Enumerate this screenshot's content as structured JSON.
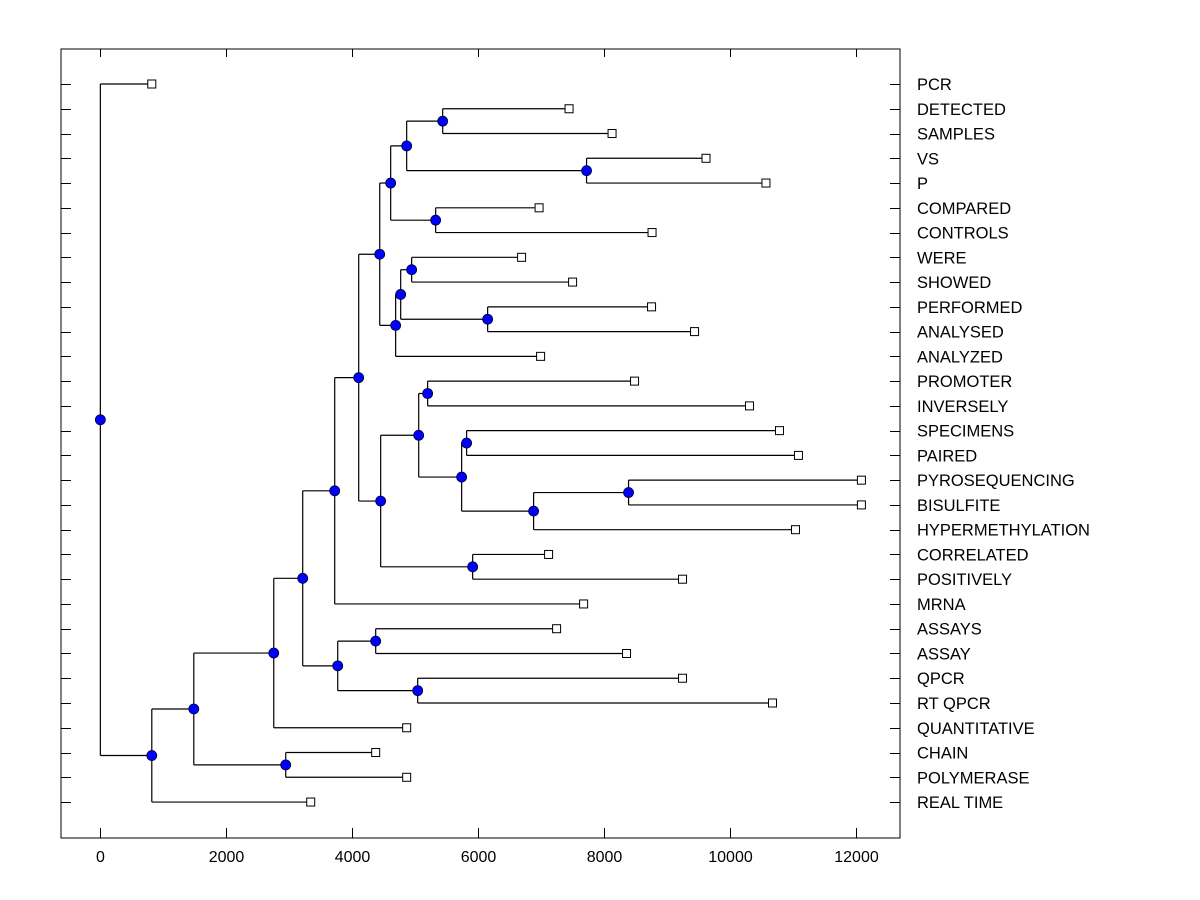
{
  "chart_data": {
    "type": "dendrogram",
    "title": "",
    "xlabel": "",
    "ylabel": "",
    "xlim": [
      -625,
      12700
    ],
    "x_ticks": [
      0,
      2000,
      4000,
      6000,
      8000,
      10000,
      12000
    ],
    "x_tick_labels": [
      "0",
      "2000",
      "4000",
      "6000",
      "8000",
      "10000",
      "12000"
    ],
    "grid": false,
    "legend": "none",
    "node_color": "#0000ff",
    "leaf_marker": "open-square",
    "leaves": [
      {
        "id": "PCR",
        "label": "PCR",
        "value": 817
      },
      {
        "id": "DETECTED",
        "label": "DETECTED",
        "value": 7444
      },
      {
        "id": "SAMPLES",
        "label": "SAMPLES",
        "value": 8127
      },
      {
        "id": "VS",
        "label": "VS",
        "value": 9619
      },
      {
        "id": "P",
        "label": "P",
        "value": 10571
      },
      {
        "id": "COMPARED",
        "label": "COMPARED",
        "value": 6968
      },
      {
        "id": "CONTROLS",
        "label": "CONTROLS",
        "value": 8762
      },
      {
        "id": "WERE",
        "label": "WERE",
        "value": 6690
      },
      {
        "id": "SHOWED",
        "label": "SHOWED",
        "value": 7500
      },
      {
        "id": "PERFORMED",
        "label": "PERFORMED",
        "value": 8754
      },
      {
        "id": "ANALYSED",
        "label": "ANALYSED",
        "value": 9437
      },
      {
        "id": "ANALYZED",
        "label": "ANALYZED",
        "value": 6992
      },
      {
        "id": "PROMOTER",
        "label": "PROMOTER",
        "value": 8484
      },
      {
        "id": "INVERSELY",
        "label": "INVERSELY",
        "value": 10310
      },
      {
        "id": "SPECIMENS",
        "label": "SPECIMENS",
        "value": 10786
      },
      {
        "id": "PAIRED",
        "label": "PAIRED",
        "value": 11087
      },
      {
        "id": "PYROSEQUENCING",
        "label": "PYROSEQUENCING",
        "value": 12087
      },
      {
        "id": "BISULFITE",
        "label": "BISULFITE",
        "value": 12087
      },
      {
        "id": "HYPERMETHYLATION",
        "label": "HYPERMETHYLATION",
        "value": 11040
      },
      {
        "id": "CORRELATED",
        "label": "CORRELATED",
        "value": 7119
      },
      {
        "id": "POSITIVELY",
        "label": "POSITIVELY",
        "value": 9246
      },
      {
        "id": "MRNA",
        "label": "MRNA",
        "value": 7675
      },
      {
        "id": "ASSAYS",
        "label": "ASSAYS",
        "value": 7246
      },
      {
        "id": "ASSAY",
        "label": "ASSAY",
        "value": 8357
      },
      {
        "id": "QPCR",
        "label": "QPCR",
        "value": 9246
      },
      {
        "id": "RT_QPCR",
        "label": "RT QPCR",
        "value": 10675
      },
      {
        "id": "QUANTITATIVE",
        "label": "QUANTITATIVE",
        "value": 4865
      },
      {
        "id": "CHAIN",
        "label": "CHAIN",
        "value": 4373
      },
      {
        "id": "POLYMERASE",
        "label": "POLYMERASE",
        "value": 4865
      },
      {
        "id": "REAL_TIME",
        "label": "REAL TIME",
        "value": 3341
      }
    ],
    "nodes": [
      {
        "id": "root",
        "value": 0,
        "children": [
          "PCR",
          "n1"
        ]
      },
      {
        "id": "n1",
        "value": 817,
        "children": [
          "n2",
          "REAL_TIME"
        ]
      },
      {
        "id": "n2",
        "value": 1484,
        "children": [
          "n3",
          "n_chain"
        ]
      },
      {
        "id": "n_chain",
        "value": 2944,
        "children": [
          "CHAIN",
          "POLYMERASE"
        ]
      },
      {
        "id": "n3",
        "value": 2754,
        "children": [
          "n4",
          "QUANTITATIVE"
        ]
      },
      {
        "id": "n4",
        "value": 3214,
        "children": [
          "n5",
          "n_assay"
        ]
      },
      {
        "id": "n_assay",
        "value": 3770,
        "children": [
          "n_as",
          "n_qpcr"
        ]
      },
      {
        "id": "n_as",
        "value": 4373,
        "children": [
          "ASSAYS",
          "ASSAY"
        ]
      },
      {
        "id": "n_qpcr",
        "value": 5040,
        "children": [
          "QPCR",
          "RT_QPCR"
        ]
      },
      {
        "id": "n5",
        "value": 3722,
        "children": [
          "n6",
          "MRNA"
        ]
      },
      {
        "id": "n6",
        "value": 4103,
        "children": [
          "n_top",
          "n_mid"
        ]
      },
      {
        "id": "n_top",
        "value": 4437,
        "children": [
          "n_a",
          "n_b"
        ]
      },
      {
        "id": "n_a",
        "value": 4611,
        "children": [
          "n_a1",
          "n_a2"
        ]
      },
      {
        "id": "n_a1",
        "value": 4865,
        "children": [
          "n_det",
          "n_vs"
        ]
      },
      {
        "id": "n_det",
        "value": 5437,
        "children": [
          "DETECTED",
          "SAMPLES"
        ]
      },
      {
        "id": "n_vs",
        "value": 7722,
        "children": [
          "VS",
          "P"
        ]
      },
      {
        "id": "n_a2",
        "value": 5325,
        "children": [
          "COMPARED",
          "CONTROLS"
        ]
      },
      {
        "id": "n_b",
        "value": 4690,
        "children": [
          "n_b1",
          "ANALYZED"
        ]
      },
      {
        "id": "n_b1",
        "value": 4770,
        "children": [
          "n_were",
          "n_perf"
        ]
      },
      {
        "id": "n_were",
        "value": 4944,
        "children": [
          "WERE",
          "SHOWED"
        ]
      },
      {
        "id": "n_perf",
        "value": 6151,
        "children": [
          "PERFORMED",
          "ANALYSED"
        ]
      },
      {
        "id": "n_mid",
        "value": 4452,
        "children": [
          "n_m1",
          "n_corr"
        ]
      },
      {
        "id": "n_m1",
        "value": 5056,
        "children": [
          "n_prom",
          "n_spec"
        ]
      },
      {
        "id": "n_prom",
        "value": 5198,
        "children": [
          "PROMOTER",
          "INVERSELY"
        ]
      },
      {
        "id": "n_spec",
        "value": 5738,
        "children": [
          "n_pair",
          "n_bis"
        ]
      },
      {
        "id": "n_pair",
        "value": 5817,
        "children": [
          "SPECIMENS",
          "PAIRED"
        ]
      },
      {
        "id": "n_bis",
        "value": 6881,
        "children": [
          "n_pyro",
          "HYPERMETHYLATION"
        ]
      },
      {
        "id": "n_pyro",
        "value": 8389,
        "children": [
          "PYROSEQUENCING",
          "BISULFITE"
        ]
      },
      {
        "id": "n_corr",
        "value": 5913,
        "children": [
          "CORRELATED",
          "POSITIVELY"
        ]
      }
    ]
  }
}
